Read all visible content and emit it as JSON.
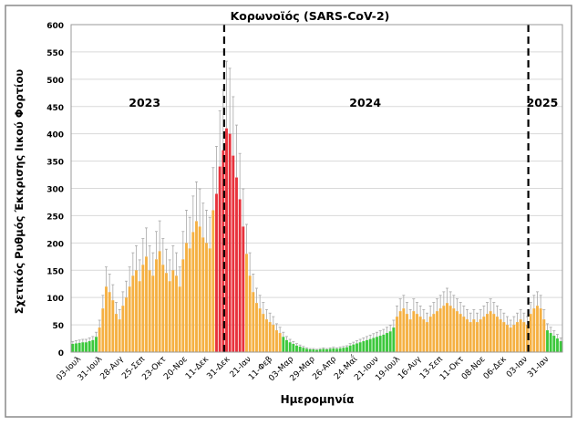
{
  "chart_data": {
    "type": "bar",
    "title": "Κορωνοϊός (SARS-CoV-2)",
    "xlabel": "Ημερομηνία",
    "ylabel": "Σχετικός Ρυθμός Έκκρισης Ιικού Φορτίου",
    "ylim": [
      0,
      600
    ],
    "yticks": [
      0,
      50,
      100,
      150,
      200,
      250,
      300,
      350,
      400,
      450,
      500,
      550,
      600
    ],
    "grid": true,
    "xtick_labels": [
      "03-Ιουλ",
      "31-Ιουλ",
      "28-Αυγ",
      "25-Σεπ",
      "23-Οκτ",
      "20-Νοε",
      "11-Δεκ",
      "31-Δεκ",
      "21-Ιαν",
      "11-Φεβ",
      "03-Μαρ",
      "29-Μαρ",
      "26-Απρ",
      "24-Μαΐ",
      "21-Ιουν",
      "19-Ιουλ",
      "16-Αυγ",
      "13-Σεπ",
      "11-Οκτ",
      "08-Νοε",
      "06-Δεκ",
      "03-Ιαν",
      "31-Ιαν"
    ],
    "year_labels": [
      {
        "text": "2023",
        "bin": 22
      },
      {
        "text": "2024",
        "bin": 88
      },
      {
        "text": "2025",
        "bin": 141
      }
    ],
    "year_boundaries_bin": [
      45.8,
      136.8
    ],
    "error_fraction": 0.3,
    "values": [
      15,
      16,
      17,
      18,
      18,
      20,
      22,
      28,
      45,
      80,
      120,
      110,
      95,
      70,
      60,
      85,
      100,
      120,
      140,
      150,
      130,
      160,
      175,
      150,
      140,
      170,
      185,
      160,
      145,
      130,
      150,
      140,
      120,
      170,
      200,
      190,
      220,
      240,
      230,
      210,
      200,
      190,
      260,
      290,
      340,
      370,
      410,
      400,
      360,
      320,
      280,
      230,
      180,
      140,
      110,
      90,
      80,
      70,
      60,
      55,
      50,
      40,
      35,
      28,
      22,
      18,
      15,
      12,
      10,
      8,
      6,
      5,
      5,
      4,
      5,
      6,
      5,
      6,
      7,
      6,
      7,
      8,
      9,
      12,
      14,
      16,
      18,
      20,
      22,
      24,
      26,
      28,
      30,
      32,
      35,
      38,
      45,
      65,
      75,
      80,
      70,
      60,
      75,
      70,
      65,
      60,
      55,
      65,
      70,
      75,
      80,
      85,
      90,
      85,
      80,
      75,
      70,
      65,
      60,
      55,
      60,
      55,
      60,
      65,
      70,
      75,
      70,
      65,
      60,
      55,
      50,
      45,
      50,
      55,
      60,
      55,
      50,
      70,
      80,
      85,
      80,
      60,
      40,
      35,
      30,
      25,
      20
    ],
    "level_segments": [
      {
        "from": 0,
        "to": 7,
        "level": "low"
      },
      {
        "from": 8,
        "to": 42,
        "level": "medium"
      },
      {
        "from": 43,
        "to": 51,
        "level": "high"
      },
      {
        "from": 52,
        "to": 62,
        "level": "medium"
      },
      {
        "from": 63,
        "to": 96,
        "level": "low"
      },
      {
        "from": 97,
        "to": 141,
        "level": "medium"
      },
      {
        "from": 142,
        "to": 146,
        "level": "low"
      }
    ],
    "colors": {
      "low": "#3cc83c",
      "medium": "#f5b042",
      "high": "#e8323c",
      "error": "#a8a8a8",
      "grid": "#d9d9d9"
    }
  }
}
